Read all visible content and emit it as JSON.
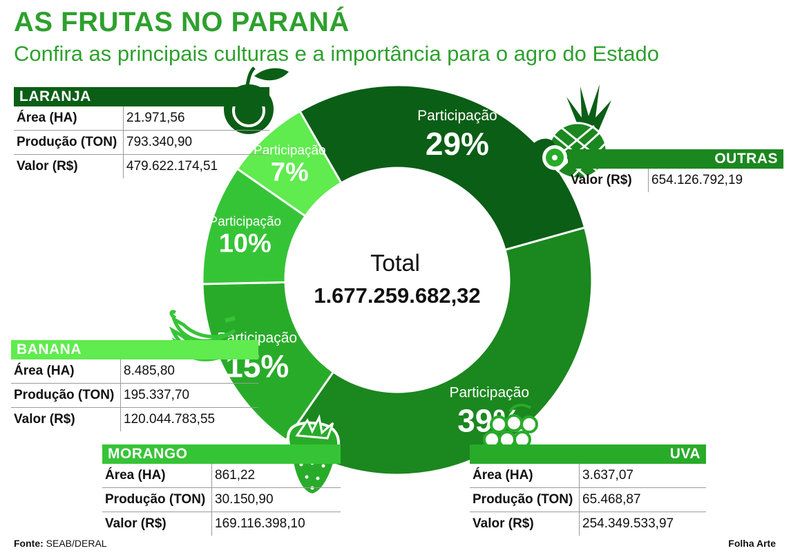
{
  "header": {
    "title": "AS FRUTAS NO PARANÁ",
    "subtitle": "Confira as principais culturas e a importância para o agro do Estado"
  },
  "chart_data": {
    "type": "pie",
    "variant": "donut",
    "center_label": "Total",
    "center_value": "1.677.259.682,32",
    "slice_label": "Participação",
    "slices": [
      {
        "key": "laranja",
        "value": 29,
        "label": "29%",
        "color": "#0b5e16"
      },
      {
        "key": "outras",
        "value": 39,
        "label": "39%",
        "color": "#1b871f"
      },
      {
        "key": "uva",
        "value": 15,
        "label": "15%",
        "color": "#29ab2a"
      },
      {
        "key": "morango",
        "value": 10,
        "label": "10%",
        "color": "#36c437"
      },
      {
        "key": "banana",
        "value": 7,
        "label": "7%",
        "color": "#60eb4f"
      }
    ]
  },
  "panels": {
    "laranja": {
      "name": "LARANJA",
      "rows": [
        {
          "k": "Área (HA)",
          "v": "21.971,56"
        },
        {
          "k": "Produção (TON)",
          "v": "793.340,90"
        },
        {
          "k": "Valor (R$)",
          "v": "479.622.174,51"
        }
      ]
    },
    "outras": {
      "name": "OUTRAS",
      "rows": [
        {
          "k": "Valor (R$)",
          "v": "654.126.792,19"
        }
      ]
    },
    "banana": {
      "name": "BANANA",
      "rows": [
        {
          "k": "Área (HA)",
          "v": "8.485,80"
        },
        {
          "k": "Produção (TON)",
          "v": "195.337,70"
        },
        {
          "k": "Valor (R$)",
          "v": "120.044.783,55"
        }
      ]
    },
    "morango": {
      "name": "MORANGO",
      "rows": [
        {
          "k": "Área (HA)",
          "v": "861,22"
        },
        {
          "k": "Produção (TON)",
          "v": "30.150,90"
        },
        {
          "k": "Valor (R$)",
          "v": "169.116.398,10"
        }
      ]
    },
    "uva": {
      "name": "UVA",
      "rows": [
        {
          "k": "Área (HA)",
          "v": "3.637,07"
        },
        {
          "k": "Produção (TON)",
          "v": "65.468,87"
        },
        {
          "k": "Valor (R$)",
          "v": "254.349.533,97"
        }
      ]
    }
  },
  "footer": {
    "source_label": "Fonte:",
    "source": "SEAB/DERAL",
    "credit": "Folha Arte"
  },
  "icons": [
    "orange-icon",
    "pineapple-icon",
    "banana-icon",
    "strawberry-icon",
    "grape-icon"
  ]
}
